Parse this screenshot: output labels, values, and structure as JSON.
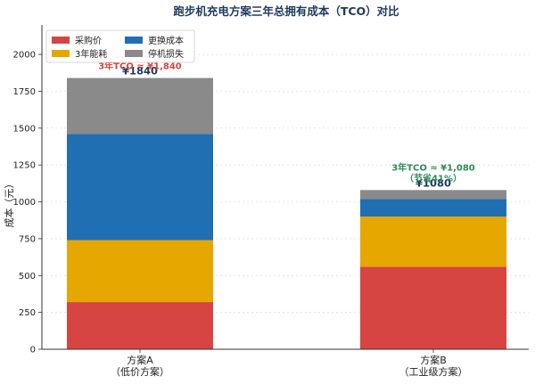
{
  "chart_data": {
    "type": "bar",
    "stacked": true,
    "title": "跑步机充电方案三年总拥有成本（TCO）对比",
    "ylabel": "成本（元）",
    "xlabel": "",
    "ylim": [
      0,
      2200
    ],
    "yticks": [
      0,
      250,
      500,
      750,
      1000,
      1250,
      1500,
      1750,
      2000
    ],
    "grid": "y-dashed",
    "legend_placement": "top-left",
    "categories": [
      [
        "方案A",
        "（低价方案）"
      ],
      [
        "方案B",
        "（工业级方案）"
      ]
    ],
    "series": [
      {
        "name": "采购价",
        "color": "#d64541",
        "values": [
          320,
          560
        ]
      },
      {
        "name": "3年能耗",
        "color": "#e6a700",
        "values": [
          420,
          340
        ]
      },
      {
        "name": "更换成本",
        "color": "#1f6fb2",
        "values": [
          720,
          120
        ]
      },
      {
        "name": "停机损失",
        "color": "#8a8a8a",
        "values": [
          380,
          60
        ]
      }
    ],
    "totals": [
      "¥1840",
      "¥1080"
    ],
    "annotations": [
      {
        "lines": [
          "3年TCO ≈ ¥1,840"
        ],
        "color": "#d64541",
        "category": 0
      },
      {
        "lines": [
          "3年TCO ≈ ¥1,080",
          "（节省41%）"
        ],
        "color": "#2e8b57",
        "category": 1
      }
    ]
  }
}
